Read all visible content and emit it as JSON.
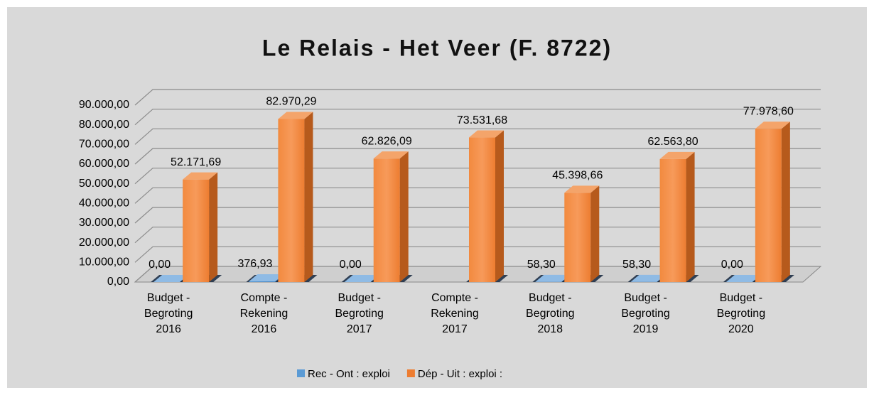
{
  "chart_data": {
    "type": "bar3d",
    "title": "Le Relais - Het Veer (F. 8722)",
    "categories": [
      [
        "Budget -",
        "Begroting",
        "2016"
      ],
      [
        "Compte -",
        "Rekening",
        "2016"
      ],
      [
        "Budget -",
        "Begroting",
        "2017"
      ],
      [
        "Compte -",
        "Rekening",
        "2017"
      ],
      [
        "Budget -",
        "Begroting",
        "2018"
      ],
      [
        "Budget -",
        "Begroting",
        "2019"
      ],
      [
        "Budget -",
        "Begroting",
        "2020"
      ]
    ],
    "series": [
      {
        "name": "Rec - Ont : exploi",
        "color": "#5b9bd5",
        "values": [
          0,
          376.93,
          0,
          null,
          58.3,
          58.3,
          0
        ],
        "value_labels": [
          "0,00",
          "376,93",
          "0,00",
          null,
          "58,30",
          "58,30",
          "0,00"
        ]
      },
      {
        "name": "Dép - Uit : exploi :",
        "color": "#ed7d31",
        "values": [
          52171.69,
          82970.29,
          62826.09,
          73531.68,
          45398.66,
          62563.8,
          77978.6
        ],
        "value_labels": [
          "52.171,69",
          "82.970,29",
          "62.826,09",
          "73.531,68",
          "45.398,66",
          "62.563,80",
          "77.978,60"
        ]
      }
    ],
    "ylim": [
      0,
      90000
    ],
    "yticks": [
      {
        "value": 0,
        "label": "0,00"
      },
      {
        "value": 10000,
        "label": "10.000,00"
      },
      {
        "value": 20000,
        "label": "20.000,00"
      },
      {
        "value": 30000,
        "label": "30.000,00"
      },
      {
        "value": 40000,
        "label": "40.000,00"
      },
      {
        "value": 50000,
        "label": "50.000,00"
      },
      {
        "value": 60000,
        "label": "60.000,00"
      },
      {
        "value": 70000,
        "label": "70.000,00"
      },
      {
        "value": 80000,
        "label": "80.000,00"
      },
      {
        "value": 90000,
        "label": "90.000,00"
      }
    ],
    "grid": true,
    "legend": "bottom"
  }
}
